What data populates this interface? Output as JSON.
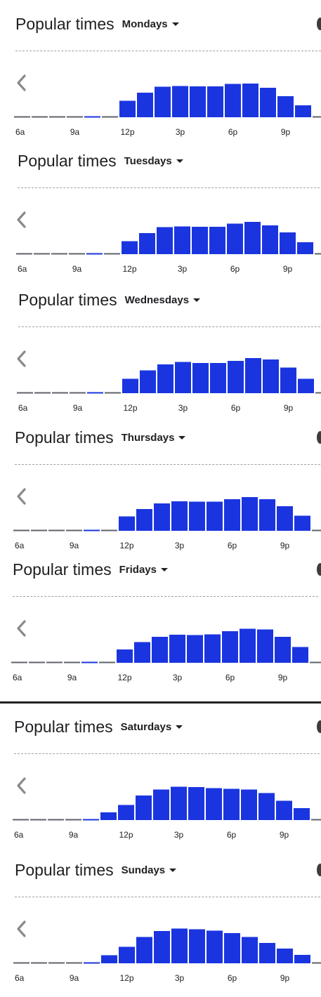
{
  "title_label": "Popular times",
  "tick_labels": [
    "6a",
    "9a",
    "12p",
    "3p",
    "6p",
    "9p"
  ],
  "colors": {
    "bar": "#1a35e0",
    "low_bar": "#1a35e0",
    "baseline": "#5f6368",
    "text": "#202124"
  },
  "icons": {
    "previous": "chevron-left-icon",
    "day_dropdown": "caret-down-icon"
  },
  "chart_data": [
    {
      "type": "bar",
      "title": "Popular times",
      "day": "Mondays",
      "categories": [
        "6a",
        "7a",
        "8a",
        "9a",
        "10a",
        "11a",
        "12p",
        "1p",
        "2p",
        "3p",
        "4p",
        "5p",
        "6p",
        "7p",
        "8p",
        "9p",
        "10p",
        "11p"
      ],
      "values": [
        0,
        0,
        0,
        0,
        1,
        0,
        47,
        70,
        87,
        89,
        88,
        88,
        95,
        96,
        84,
        60,
        34,
        0
      ],
      "ylim": [
        0,
        100
      ]
    },
    {
      "type": "bar",
      "title": "Popular times",
      "day": "Tuesdays",
      "categories": [
        "6a",
        "7a",
        "8a",
        "9a",
        "10a",
        "11a",
        "12p",
        "1p",
        "2p",
        "3p",
        "4p",
        "5p",
        "6p",
        "7p",
        "8p",
        "9p",
        "10p",
        "11p"
      ],
      "values": [
        0,
        0,
        0,
        0,
        1,
        0,
        37,
        60,
        77,
        79,
        78,
        78,
        87,
        92,
        82,
        62,
        34,
        0
      ],
      "ylim": [
        0,
        100
      ]
    },
    {
      "type": "bar",
      "title": "Popular times",
      "day": "Wednesdays",
      "categories": [
        "6a",
        "7a",
        "8a",
        "9a",
        "10a",
        "11a",
        "12p",
        "1p",
        "2p",
        "3p",
        "4p",
        "5p",
        "6p",
        "7p",
        "8p",
        "9p",
        "10p",
        "11p"
      ],
      "values": [
        0,
        0,
        0,
        0,
        1,
        0,
        41,
        65,
        82,
        89,
        86,
        86,
        92,
        100,
        96,
        73,
        41,
        0
      ],
      "ylim": [
        0,
        100
      ]
    },
    {
      "type": "bar",
      "title": "Popular times",
      "day": "Thursdays",
      "categories": [
        "6a",
        "7a",
        "8a",
        "9a",
        "10a",
        "11a",
        "12p",
        "1p",
        "2p",
        "3p",
        "4p",
        "5p",
        "6p",
        "7p",
        "8p",
        "9p",
        "10p",
        "11p"
      ],
      "values": [
        0,
        0,
        0,
        0,
        1,
        0,
        41,
        62,
        78,
        84,
        83,
        83,
        90,
        96,
        90,
        70,
        43,
        0
      ],
      "ylim": [
        0,
        100
      ]
    },
    {
      "type": "bar",
      "title": "Popular times",
      "day": "Fridays",
      "categories": [
        "6a",
        "7a",
        "8a",
        "9a",
        "10a",
        "11a",
        "12p",
        "1p",
        "2p",
        "3p",
        "4p",
        "5p",
        "6p",
        "7p",
        "8p",
        "9p",
        "10p",
        "11p"
      ],
      "values": [
        0,
        0,
        0,
        0,
        1,
        0,
        38,
        59,
        74,
        80,
        79,
        81,
        90,
        97,
        95,
        74,
        45,
        0
      ],
      "ylim": [
        0,
        100
      ]
    },
    {
      "type": "bar",
      "title": "Popular times",
      "day": "Saturdays",
      "categories": [
        "6a",
        "7a",
        "8a",
        "9a",
        "10a",
        "11a",
        "12p",
        "1p",
        "2p",
        "3p",
        "4p",
        "5p",
        "6p",
        "7p",
        "8p",
        "9p",
        "10p",
        "11p"
      ],
      "values": [
        0,
        0,
        0,
        0,
        1,
        22,
        43,
        70,
        87,
        95,
        94,
        91,
        89,
        87,
        77,
        55,
        34,
        0
      ],
      "ylim": [
        0,
        100
      ]
    },
    {
      "type": "bar",
      "title": "Popular times",
      "day": "Sundays",
      "categories": [
        "6a",
        "7a",
        "8a",
        "9a",
        "10a",
        "11a",
        "12p",
        "1p",
        "2p",
        "3p",
        "4p",
        "5p",
        "6p",
        "7p",
        "8p",
        "9p",
        "10p",
        "11p"
      ],
      "values": [
        0,
        0,
        0,
        0,
        1,
        23,
        47,
        75,
        92,
        99,
        97,
        93,
        86,
        75,
        58,
        42,
        24,
        0
      ],
      "ylim": [
        0,
        100
      ]
    }
  ]
}
